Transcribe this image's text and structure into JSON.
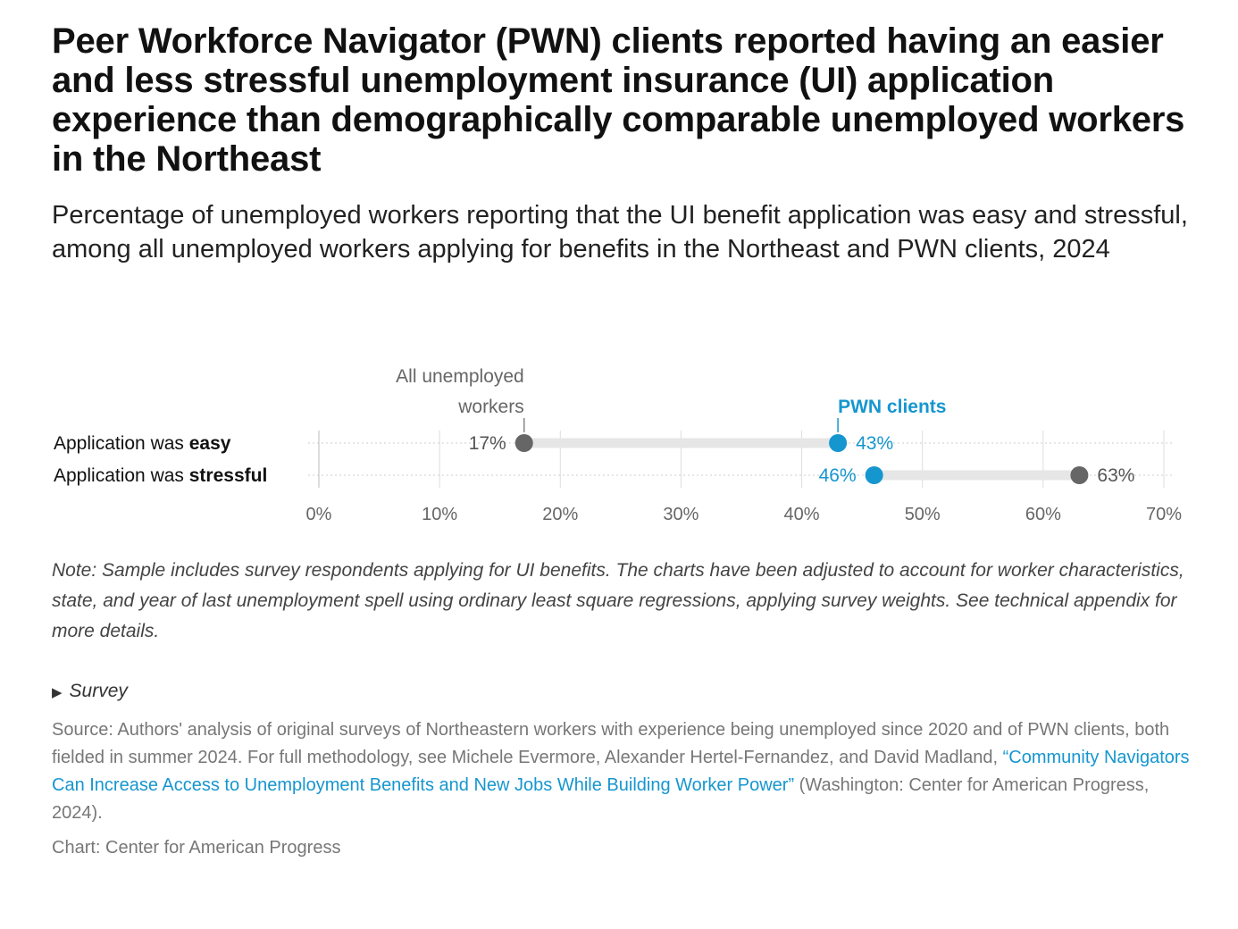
{
  "title": "Peer Workforce Navigator (PWN) clients reported having an easier and less stressful unemployment insurance (UI) application experience than demographically comparable unemployed workers in the Northeast",
  "subtitle": "Percentage of unemployed workers reporting that the UI benefit application was easy and stressful, among all unemployed workers applying for benefits in the Northeast and PWN clients, 2024",
  "note": "Note: Sample includes survey respondents applying for UI benefits. The charts have been adjusted to account for worker characteristics, state, and year of last unemployment spell using ordinary least square regressions, applying survey weights. See technical appendix for more details.",
  "survey_toggle": {
    "icon": "triangle-right-icon",
    "label": "Survey"
  },
  "source": {
    "prefix": "Source: Authors' analysis of original surveys of Northeastern workers with experience being unemployed since 2020 and of PWN clients, both fielded in summer 2024. For full methodology, see Michele Evermore, Alexander Hertel-Fernandez, and David Madland, ",
    "link_text": "“Community Navigators Can Increase Access to Unemployment Benefits and New Jobs While Building Worker Power”",
    "suffix": " (Washington: Center for American Progress, 2024)."
  },
  "credit": "Chart: Center for American Progress",
  "colors": {
    "all_workers": "#666666",
    "pwn": "#1696cf",
    "connector": "#e6e6e6",
    "grid": "#dddddd"
  },
  "chart_data": {
    "type": "dot",
    "categories": [
      {
        "prefix": "Application was ",
        "bold": "easy"
      },
      {
        "prefix": "Application was ",
        "bold": "stressful"
      }
    ],
    "series": [
      {
        "name": "All unemployed workers",
        "name_lines": [
          "All unemployed",
          "workers"
        ],
        "values": [
          17,
          63
        ]
      },
      {
        "name": "PWN clients",
        "name_lines": [
          "PWN clients"
        ],
        "values": [
          43,
          46
        ]
      }
    ],
    "value_suffix": "%",
    "xlim": [
      0,
      70
    ],
    "xticks": [
      0,
      10,
      20,
      30,
      40,
      50,
      60,
      70
    ],
    "grid": true
  }
}
